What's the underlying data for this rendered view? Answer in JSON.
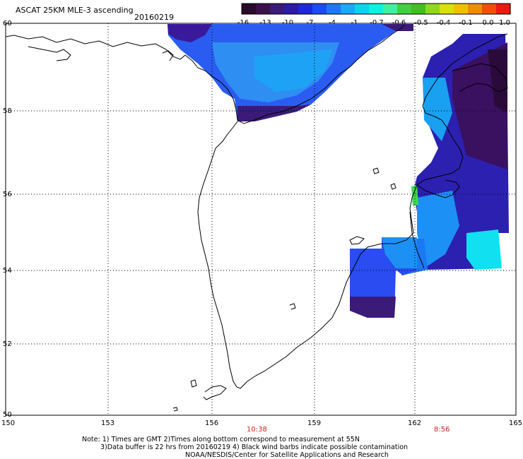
{
  "header": {
    "title": "ASCAT 25KM MLE-3 ascending",
    "date": "20160219"
  },
  "colorbar": {
    "labels": [
      "-16",
      "-13",
      "-10",
      "-7",
      "-4",
      "-1",
      "-0.7",
      "-0.6",
      "-0.5",
      "-0.4",
      "-0.1",
      "0.0",
      "1.0"
    ],
    "colors": [
      "#2a0a2a",
      "#3c1048",
      "#3a1a78",
      "#2c1aa8",
      "#1f28d8",
      "#1a4cf0",
      "#1c78f5",
      "#1aa8f8",
      "#10d0f0",
      "#10f0e0",
      "#40f0a0",
      "#40d040",
      "#40c020",
      "#90d820",
      "#d8e010",
      "#f0c000",
      "#f08c00",
      "#f05000",
      "#e81c10"
    ]
  },
  "axes": {
    "lat_labels": [
      "60",
      "58",
      "56",
      "54",
      "52",
      "50"
    ],
    "lon_labels": [
      "150",
      "153",
      "156",
      "159",
      "162",
      "165"
    ]
  },
  "times": {
    "t1": "10:38",
    "t2": "8:56"
  },
  "notes": {
    "line1": "Note: 1) Times are GMT 2)Times along bottom correspond to measurement at 55N",
    "line2": "3)Data buffer is 22 hrs from 20160219 4) Black wind barbs indicate possible contamination",
    "line3": "NOAA/NESDIS/Center for Satellite Applications and Research"
  }
}
